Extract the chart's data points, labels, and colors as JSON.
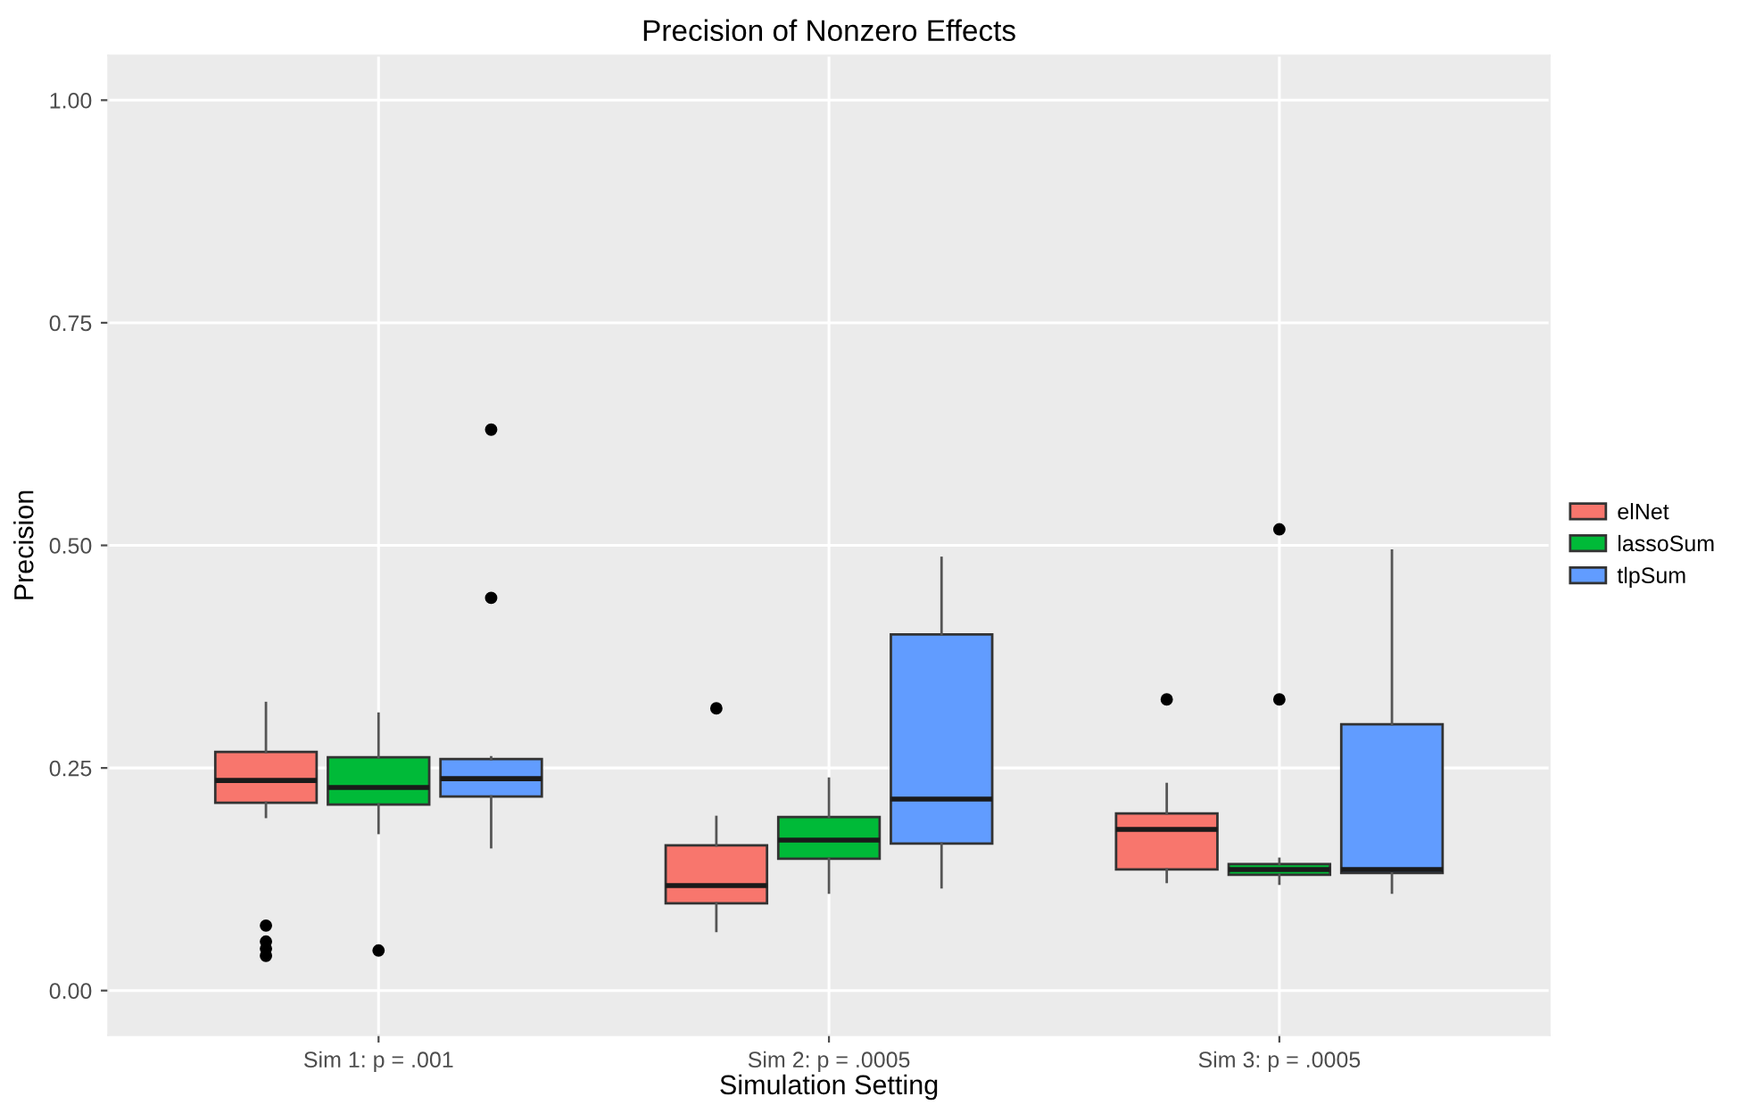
{
  "chart_data": {
    "type": "box",
    "title": "Precision of Nonzero Effects",
    "xlabel": "Simulation Setting",
    "ylabel": "Precision",
    "categories": [
      "Sim 1: p = .001",
      "Sim 2: p = .0005",
      "Sim 3: p = .0005"
    ],
    "series": [
      {
        "name": "elNet",
        "color": "#f8766d",
        "boxes": [
          {
            "low": 0.195,
            "q1": 0.211,
            "median": 0.236,
            "q3": 0.268,
            "high": 0.323,
            "outliers": [
              0.073,
              0.055,
              0.047,
              0.039
            ]
          },
          {
            "low": 0.067,
            "q1": 0.098,
            "median": 0.118,
            "q3": 0.163,
            "high": 0.195,
            "outliers": [
              0.317
            ]
          },
          {
            "low": 0.122,
            "q1": 0.136,
            "median": 0.181,
            "q3": 0.199,
            "high": 0.232,
            "outliers": [
              0.327
            ]
          }
        ]
      },
      {
        "name": "lassoSum",
        "color": "#00ba38",
        "boxes": [
          {
            "low": 0.177,
            "q1": 0.209,
            "median": 0.228,
            "q3": 0.262,
            "high": 0.311,
            "outliers": [
              0.045
            ]
          },
          {
            "low": 0.11,
            "q1": 0.148,
            "median": 0.169,
            "q3": 0.195,
            "high": 0.238
          },
          {
            "low": 0.12,
            "q1": 0.13,
            "median": 0.136,
            "q3": 0.142,
            "high": 0.148,
            "outliers": [
              0.518,
              0.327
            ]
          }
        ]
      },
      {
        "name": "tlpSum",
        "color": "#619cff",
        "boxes": [
          {
            "low": 0.161,
            "q1": 0.218,
            "median": 0.238,
            "q3": 0.26,
            "high": 0.262,
            "outliers": [
              0.63,
              0.441
            ]
          },
          {
            "low": 0.116,
            "q1": 0.165,
            "median": 0.215,
            "q3": 0.4,
            "high": 0.486
          },
          {
            "low": 0.11,
            "q1": 0.132,
            "median": 0.136,
            "q3": 0.299,
            "high": 0.494
          }
        ]
      }
    ],
    "ylim": [
      -0.05,
      1.05
    ],
    "yticks": [
      {
        "value": 0,
        "label": "0.00"
      },
      {
        "value": 0.25,
        "label": "0.25"
      },
      {
        "value": 0.5,
        "label": "0.50"
      },
      {
        "value": 0.75,
        "label": "0.75"
      },
      {
        "value": 1,
        "label": "1.00"
      }
    ],
    "grid": true,
    "legend": "right"
  }
}
